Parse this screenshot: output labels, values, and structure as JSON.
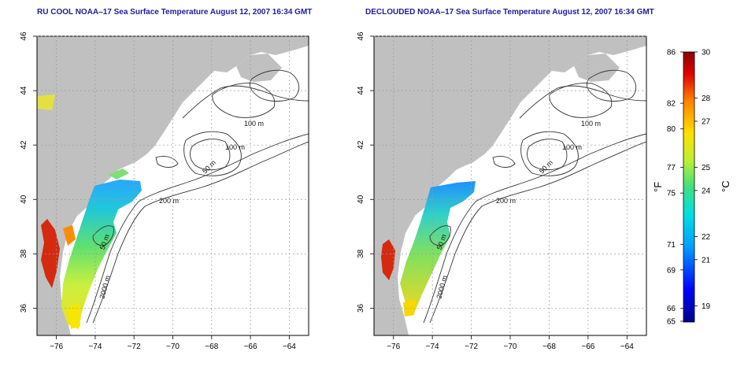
{
  "panels": [
    {
      "id": "left",
      "title": "RU COOL NOAA–17 Sea Surface Temperature August 12, 2007 16:34 GMT"
    },
    {
      "id": "right",
      "title": "DECLOUDED NOAA–17 Sea Surface Temperature August 12, 2007 16:34 GMT"
    }
  ],
  "axes": {
    "lon_ticks": [
      "−76",
      "−74",
      "−72",
      "−70",
      "−68",
      "−66",
      "−64"
    ],
    "lat_ticks": [
      "36",
      "38",
      "40",
      "42",
      "44",
      "46"
    ],
    "lon_range": [
      -77,
      -63
    ],
    "lat_range": [
      35,
      46
    ]
  },
  "contour_labels": {
    "left": [
      "100 m",
      "100 m",
      "50 m",
      "200 m",
      "50 m",
      "2000 m"
    ],
    "right": [
      "100 m",
      "100 m",
      "50 m",
      "200 m",
      "50 m",
      "2000 m"
    ]
  },
  "colorbar": {
    "fahrenheit_ticks": [
      "86",
      "82",
      "80",
      "77",
      "75",
      "71",
      "69",
      "66",
      "65"
    ],
    "celsius_ticks": [
      "30",
      "28",
      "27",
      "25",
      "24",
      "22",
      "21",
      "19"
    ],
    "unit_f": "°F",
    "unit_c": "°C",
    "range_c": [
      18.3,
      30
    ],
    "colors": [
      "#00008b",
      "#0000ff",
      "#00a0ff",
      "#00e0e0",
      "#40e080",
      "#c0ef30",
      "#ffe000",
      "#ff8000",
      "#e00000",
      "#8b0000"
    ]
  },
  "style": {
    "land_color": "#c0c0c0",
    "ocean_color": "#ffffff",
    "title_color": "#1d1d9a"
  }
}
